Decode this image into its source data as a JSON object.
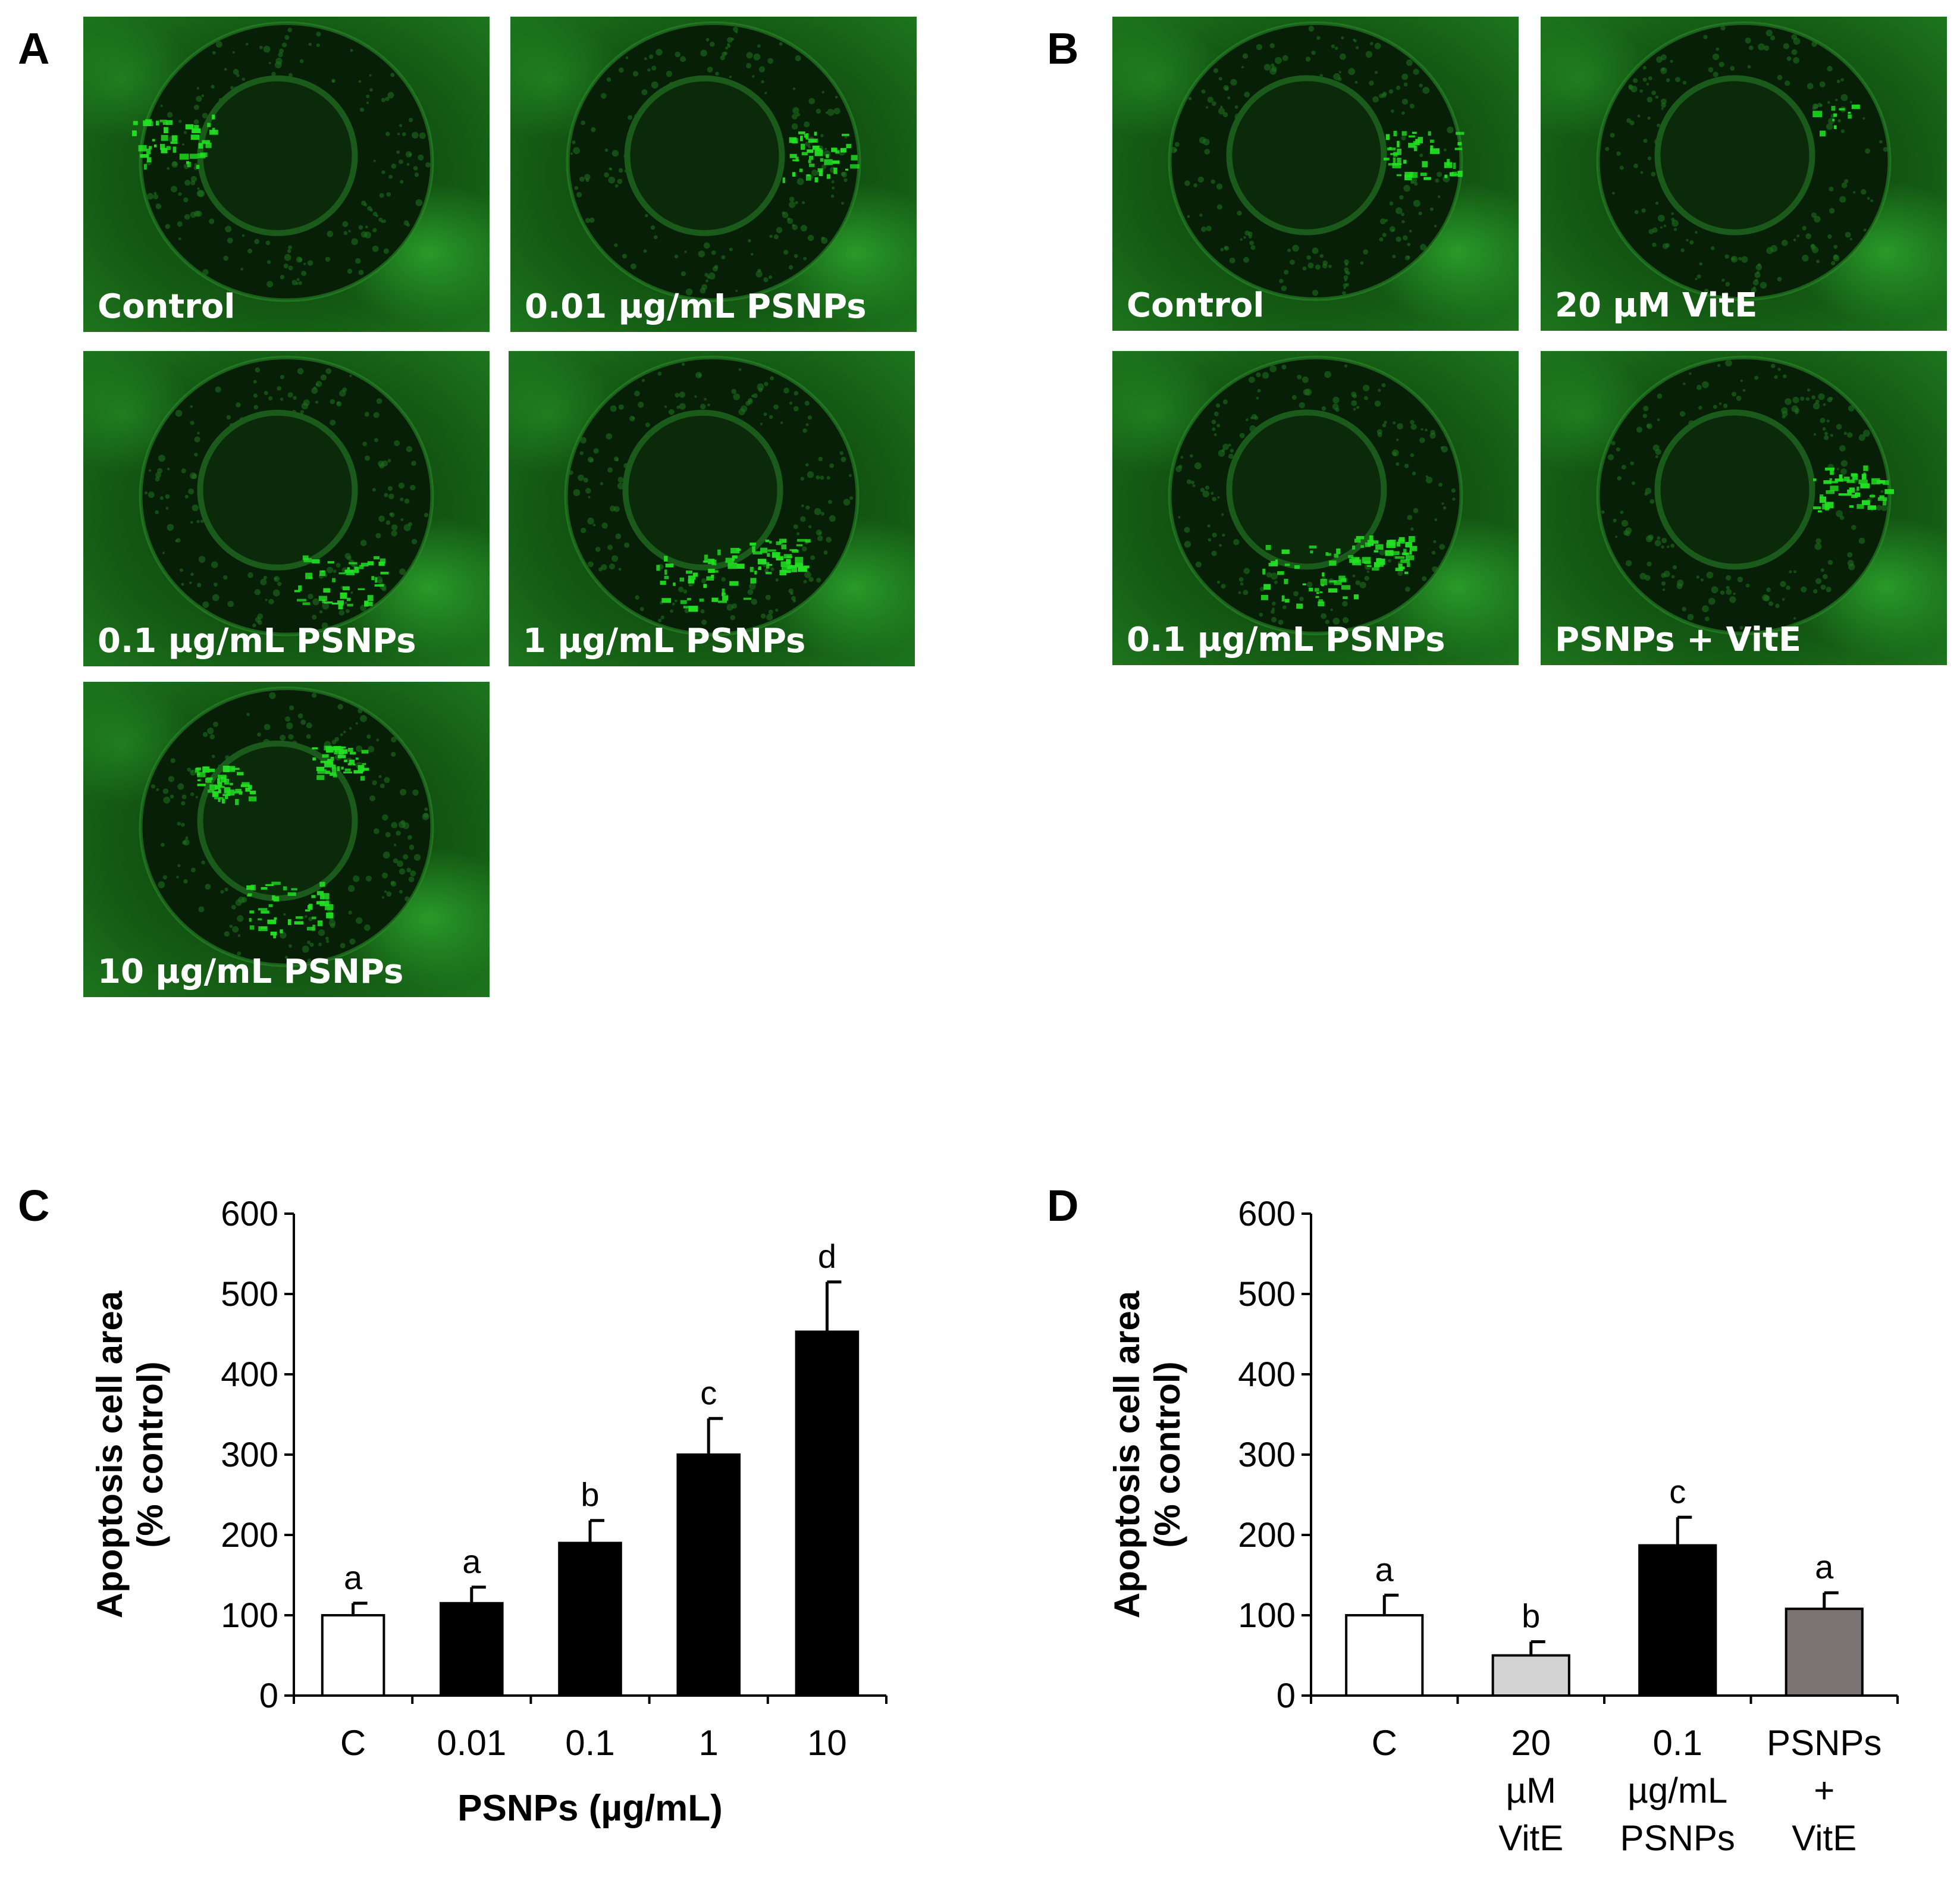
{
  "panel_letters": {
    "a": "A",
    "b": "B",
    "c": "C",
    "d": "D"
  },
  "micrographs_a": [
    {
      "label": "Control",
      "hotspot": "left"
    },
    {
      "label": "0.01 µg/mL PSNPs",
      "hotspot": "right"
    },
    {
      "label": "0.1 µg/mL PSNPs",
      "hotspot": "bottom-right"
    },
    {
      "label": "1 µg/mL PSNPs",
      "hotspot": "bottom"
    },
    {
      "label": "10 µg/mL PSNPs",
      "hotspot": "ring"
    }
  ],
  "micrographs_b": [
    {
      "label": "Control",
      "hotspot": "right"
    },
    {
      "label": "20 µM VitE",
      "hotspot": "faint"
    },
    {
      "label": "0.1 µg/mL PSNPs",
      "hotspot": "bottom"
    },
    {
      "label": "PSNPs + VitE",
      "hotspot": "right"
    }
  ],
  "colors": {
    "fluorescence": "#22e022",
    "background_green": "#0f4a0f",
    "bar_white": "#ffffff",
    "bar_black": "#000000",
    "bar_light_gray": "#d3d3d3",
    "bar_dark_gray": "#7a7474"
  },
  "chart_data": [
    {
      "type": "bar",
      "panel": "C",
      "categories": [
        "C",
        "0.01",
        "0.1",
        "1",
        "10"
      ],
      "values": [
        100,
        115,
        190,
        300,
        453
      ],
      "errors": [
        15,
        20,
        28,
        45,
        62
      ],
      "significance": [
        "a",
        "a",
        "b",
        "c",
        "d"
      ],
      "bar_colors": [
        "#ffffff",
        "#000000",
        "#000000",
        "#000000",
        "#000000"
      ],
      "ylabel_line1": "Apoptosis cell area",
      "ylabel_line2": "(% control)",
      "xlabel": "PSNPs (µg/mL)",
      "ylim": [
        0,
        600
      ],
      "yticks": [
        0,
        100,
        200,
        300,
        400,
        500,
        600
      ]
    },
    {
      "type": "bar",
      "panel": "D",
      "categories": [
        [
          "C"
        ],
        [
          "20",
          "µM",
          "VitE"
        ],
        [
          "0.1",
          "µg/mL",
          "PSNPs"
        ],
        [
          "PSNPs",
          "+",
          "VitE"
        ]
      ],
      "values": [
        100,
        50,
        187,
        108
      ],
      "errors": [
        25,
        17,
        35,
        20
      ],
      "significance": [
        "a",
        "b",
        "c",
        "a"
      ],
      "bar_colors": [
        "#ffffff",
        "#d3d3d3",
        "#000000",
        "#7a7474"
      ],
      "ylabel_line1": "Apoptosis cell area",
      "ylabel_line2": "(% control)",
      "xlabel": "",
      "ylim": [
        0,
        600
      ],
      "yticks": [
        0,
        100,
        200,
        300,
        400,
        500,
        600
      ]
    }
  ]
}
